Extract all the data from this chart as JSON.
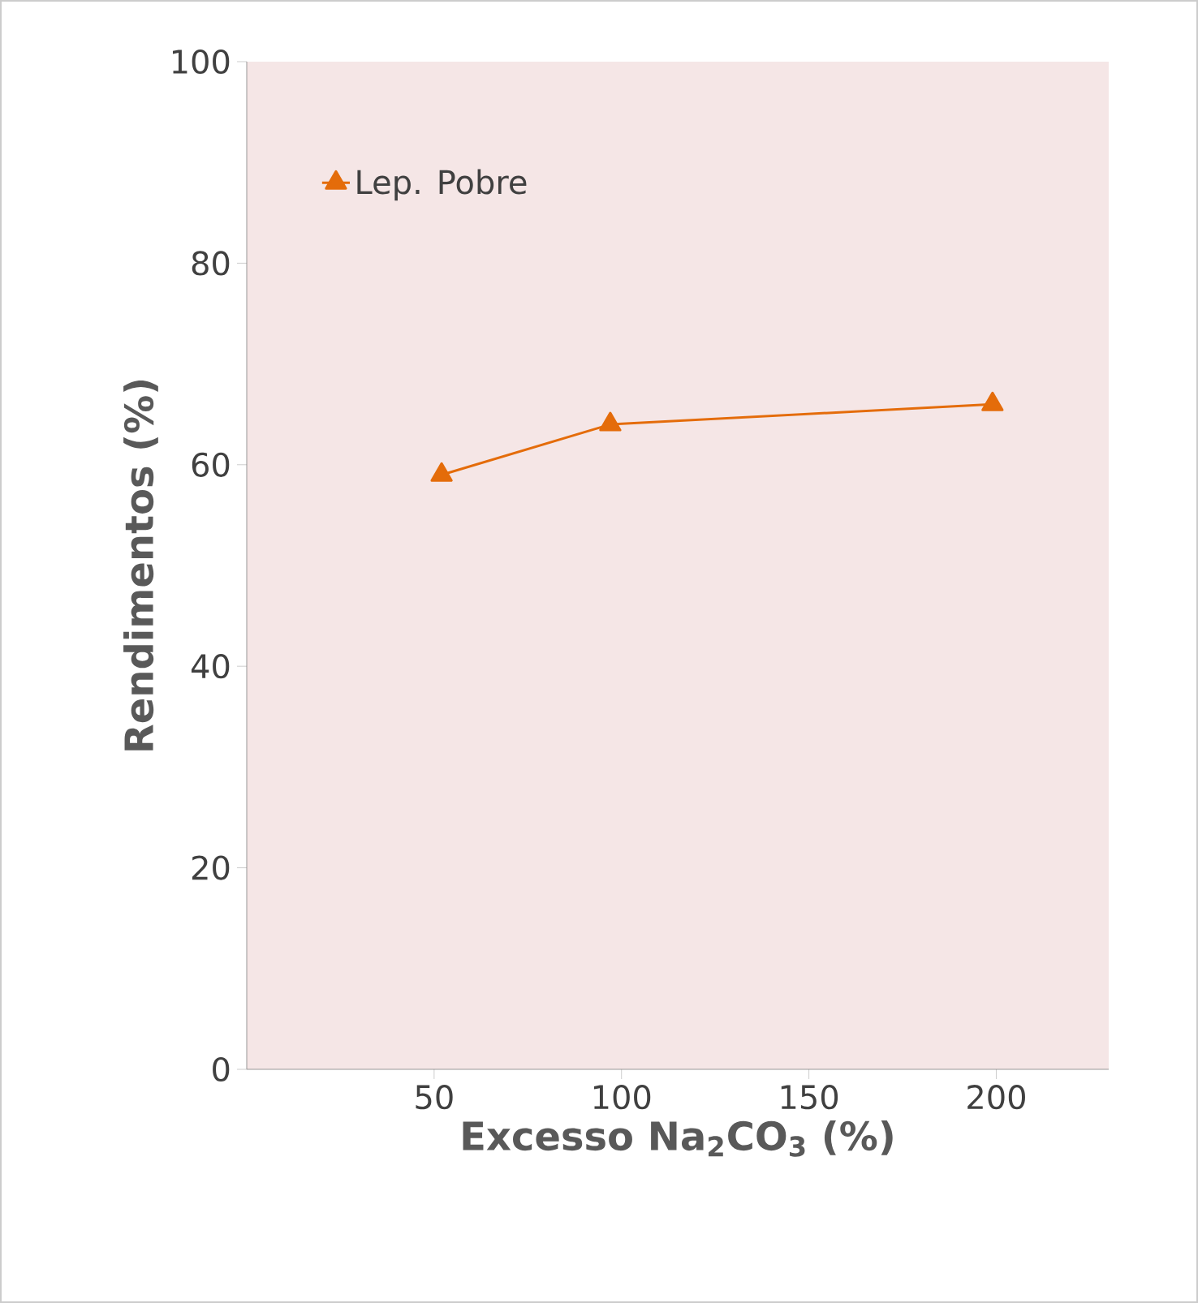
{
  "chart_data": {
    "type": "line",
    "xlabel": "Excesso Na$_{2}$CO$_{3}$ (%)",
    "ylabel": "Rendimentos (%)",
    "x": [
      52,
      97,
      199
    ],
    "series": [
      {
        "name": "Lep. Pobre",
        "color": "#e46c0a",
        "values": [
          59,
          64,
          66
        ]
      }
    ],
    "xlim": [
      0,
      230
    ],
    "xticks": [
      50,
      100,
      150,
      200
    ],
    "ylim": [
      0,
      100
    ],
    "yticks": [
      0,
      20,
      40,
      60,
      80,
      100
    ],
    "grid": false,
    "legend": "top left",
    "marker": "triangle",
    "line_style": "solid"
  }
}
